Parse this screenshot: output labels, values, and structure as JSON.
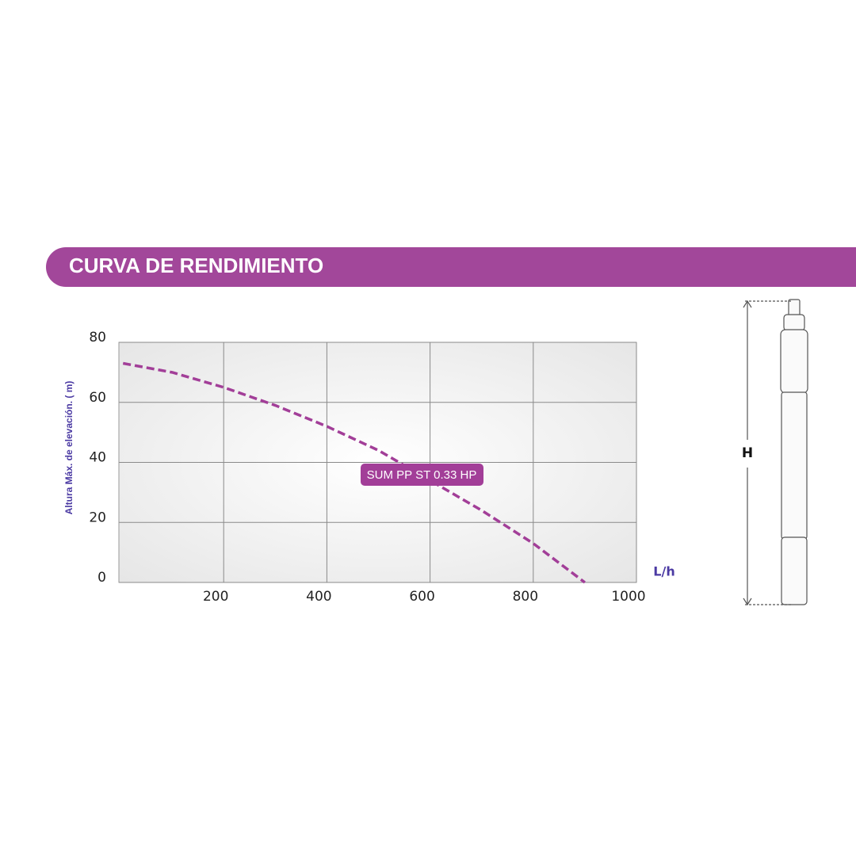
{
  "chart_data": {
    "type": "line",
    "title": "CURVA DE RENDIMIENTO",
    "x_label": "L/h",
    "y_label": "Altura Máx. de elevación. ( m)",
    "x": [
      5,
      100,
      200,
      300,
      400,
      500,
      600,
      700,
      800,
      900
    ],
    "series": [
      {
        "name": "SUM PP ST 0.33 HP",
        "color": "#a23e98",
        "values": [
          73,
          70,
          65,
          59,
          52,
          44,
          34,
          24,
          13,
          0
        ]
      }
    ],
    "xlim": [
      0,
      1000
    ],
    "xticks": [
      200,
      400,
      600,
      800,
      1000
    ],
    "ylim": [
      0,
      80
    ],
    "yticks": [
      0,
      20,
      40,
      60,
      80
    ],
    "grid": true,
    "line_style": "dashed"
  },
  "illustration": {
    "dimension_label": "H"
  }
}
